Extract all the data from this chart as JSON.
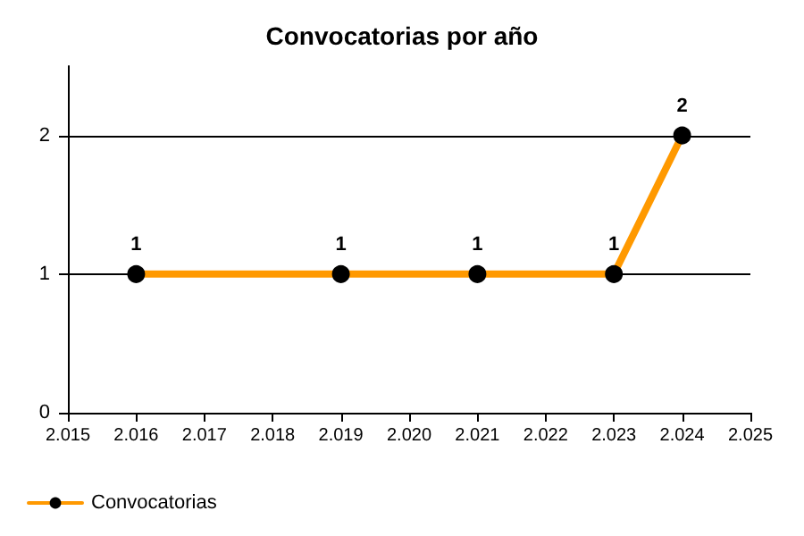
{
  "chart_data": {
    "type": "line",
    "title": "Convocatorias por año",
    "x": [
      2016,
      2019,
      2021,
      2023,
      2024
    ],
    "series": [
      {
        "name": "Convocatorias",
        "color": "#ff9900",
        "values": [
          1,
          1,
          1,
          1,
          2
        ]
      }
    ],
    "xlim": [
      2015,
      2025
    ],
    "xticks": [
      {
        "value": 2015,
        "label": "2.015"
      },
      {
        "value": 2016,
        "label": "2.016"
      },
      {
        "value": 2017,
        "label": "2.017"
      },
      {
        "value": 2018,
        "label": "2.018"
      },
      {
        "value": 2019,
        "label": "2.019"
      },
      {
        "value": 2020,
        "label": "2.020"
      },
      {
        "value": 2021,
        "label": "2.021"
      },
      {
        "value": 2022,
        "label": "2.022"
      },
      {
        "value": 2023,
        "label": "2.023"
      },
      {
        "value": 2024,
        "label": "2.024"
      },
      {
        "value": 2025,
        "label": "2.025"
      }
    ],
    "ylim": [
      0,
      2.5
    ],
    "yticks": [
      0,
      1,
      2
    ],
    "grid": "y",
    "legend": "bottom left",
    "marker": "circle",
    "line_style": "solid",
    "data_labels": true
  }
}
